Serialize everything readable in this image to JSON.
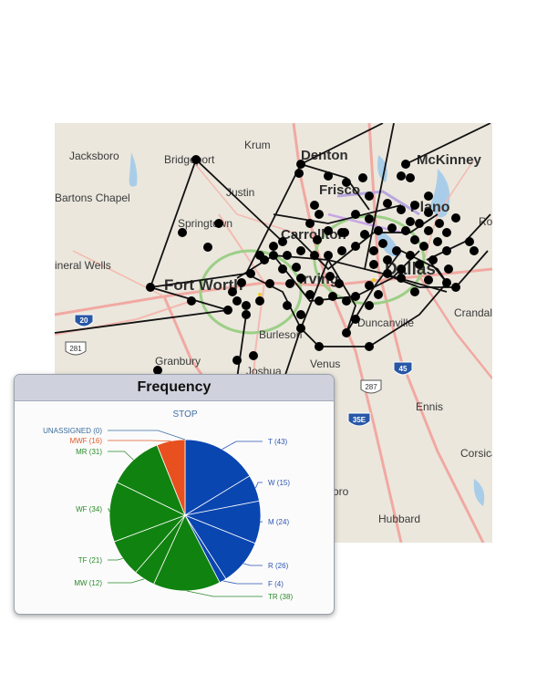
{
  "map": {
    "cities": [
      {
        "id": "krum",
        "name": "Krum"
      },
      {
        "id": "denton",
        "name": "Denton"
      },
      {
        "id": "mckinney",
        "name": "McKinney"
      },
      {
        "id": "jacksboro",
        "name": "Jacksboro"
      },
      {
        "id": "bridgeport",
        "name": "Bridgeport"
      },
      {
        "id": "frisco",
        "name": "Frisco"
      },
      {
        "id": "barton",
        "name": "Bartons Chapel"
      },
      {
        "id": "justin",
        "name": "Justin"
      },
      {
        "id": "plano",
        "name": "Plano"
      },
      {
        "id": "springtown",
        "name": "Springtown"
      },
      {
        "id": "carrollton",
        "name": "Carrollton"
      },
      {
        "id": "ro",
        "name": "Ro"
      },
      {
        "id": "mineral",
        "name": "ineral Wells"
      },
      {
        "id": "fortworth",
        "name": "Fort Worth"
      },
      {
        "id": "irving",
        "name": "Irving"
      },
      {
        "id": "dallas",
        "name": "Dallas"
      },
      {
        "id": "duncanville",
        "name": "Duncanville"
      },
      {
        "id": "crandal",
        "name": "Crandal"
      },
      {
        "id": "burleson",
        "name": "Burleson"
      },
      {
        "id": "granbury",
        "name": "Granbury"
      },
      {
        "id": "joshua",
        "name": "Joshua"
      },
      {
        "id": "venus",
        "name": "Venus"
      },
      {
        "id": "ennis",
        "name": "Ennis"
      },
      {
        "id": "corsica",
        "name": "Corsican"
      },
      {
        "id": "hubbard",
        "name": "Hubbard"
      },
      {
        "id": "oro",
        "name": "oro"
      }
    ],
    "shields": [
      {
        "id": "i20",
        "label": "20"
      },
      {
        "id": "h281",
        "label": "281"
      },
      {
        "id": "i45",
        "label": "45"
      },
      {
        "id": "h287",
        "label": "287"
      },
      {
        "id": "i35e",
        "label": "35E"
      }
    ]
  },
  "panel": {
    "title": "Frequency",
    "subtitle": "STOP",
    "slices": [
      {
        "label": "UNASSIGNED (0)",
        "value": 0,
        "color": "#2e6fb8",
        "label_color": "#3c6e9e"
      },
      {
        "label": "T (43)",
        "value": 43,
        "color": "#0a46b0",
        "label_color": "#2d56b3"
      },
      {
        "label": "W (15)",
        "value": 15,
        "color": "#0a46b0",
        "label_color": "#2d56b3"
      },
      {
        "label": "M (24)",
        "value": 24,
        "color": "#0a46b0",
        "label_color": "#2d56b3"
      },
      {
        "label": "R (26)",
        "value": 26,
        "color": "#0a46b0",
        "label_color": "#2d56b3"
      },
      {
        "label": "F (4)",
        "value": 4,
        "color": "#0a46b0",
        "label_color": "#2d56b3"
      },
      {
        "label": "TR (38)",
        "value": 38,
        "color": "#108210",
        "label_color": "#2a8a2a"
      },
      {
        "label": "MW (12)",
        "value": 12,
        "color": "#108210",
        "label_color": "#2a8a2a"
      },
      {
        "label": "TF (21)",
        "value": 21,
        "color": "#108210",
        "label_color": "#2a8a2a"
      },
      {
        "label": "WF (34)",
        "value": 34,
        "color": "#108210",
        "label_color": "#2a8a2a"
      },
      {
        "label": "MR (31)",
        "value": 31,
        "color": "#108210",
        "label_color": "#2a8a2a"
      },
      {
        "label": "MWF (16)",
        "value": 16,
        "color": "#e8501f",
        "label_color": "#e05a2a"
      }
    ]
  }
}
